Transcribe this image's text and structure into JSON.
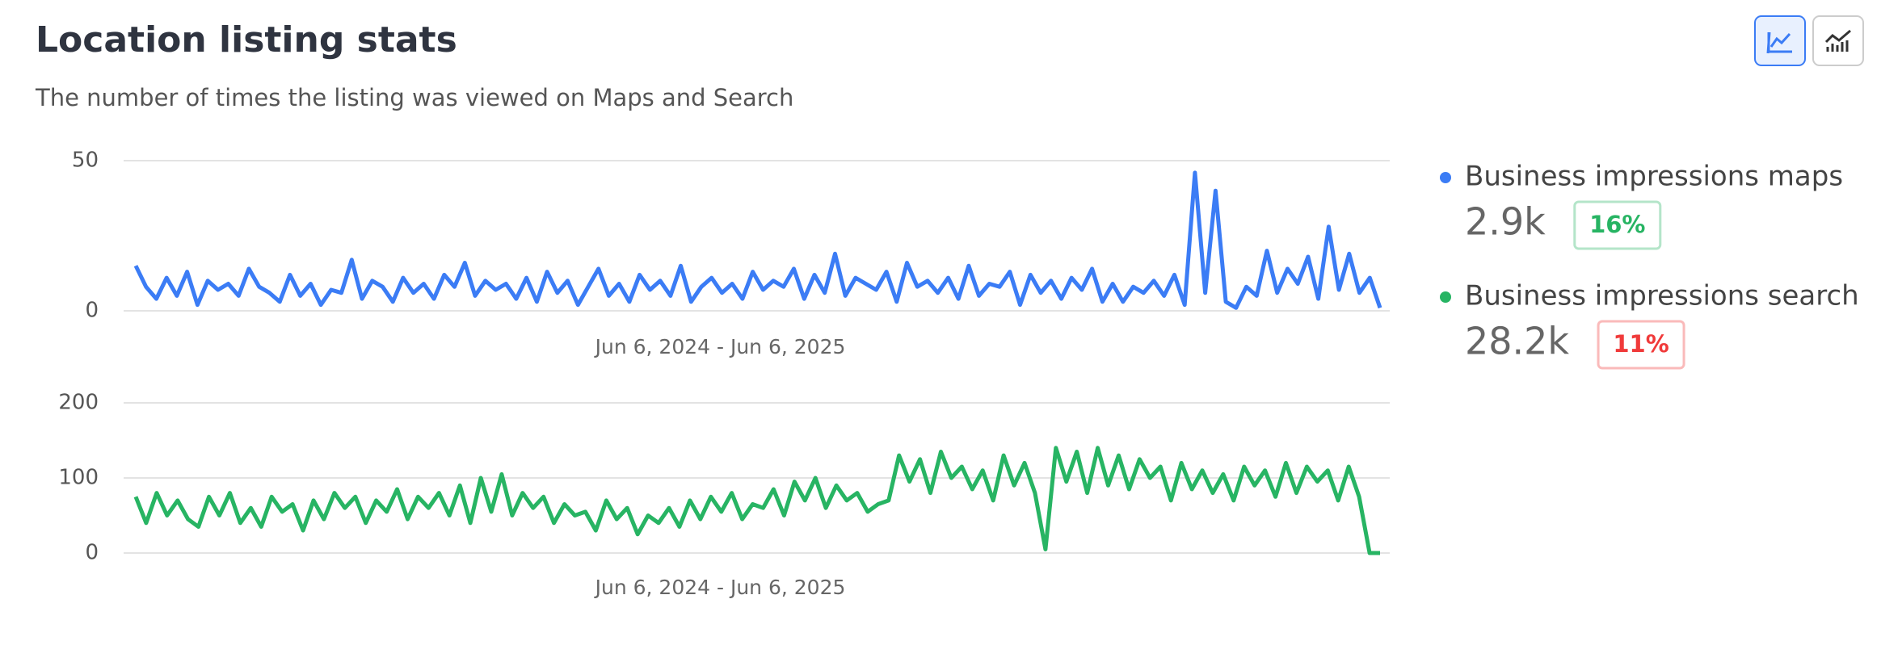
{
  "header": {
    "title": "Location listing stats",
    "subtitle": "The number of times the listing was viewed on Maps and Search"
  },
  "chart_data": [
    {
      "type": "line",
      "xlabel": "Jun 6, 2024 - Jun 6, 2025",
      "ylim": [
        0,
        50
      ],
      "yticks": [
        0,
        50
      ],
      "grid": true,
      "series": [
        {
          "name": "Business impressions maps",
          "color": "#3b7cf5",
          "values": [
            15,
            8,
            4,
            11,
            5,
            13,
            2,
            10,
            7,
            9,
            5,
            14,
            8,
            6,
            3,
            12,
            5,
            9,
            2,
            7,
            6,
            17,
            4,
            10,
            8,
            3,
            11,
            6,
            9,
            4,
            12,
            8,
            16,
            5,
            10,
            7,
            9,
            4,
            11,
            3,
            13,
            6,
            10,
            2,
            8,
            14,
            5,
            9,
            3,
            12,
            7,
            10,
            5,
            15,
            3,
            8,
            11,
            6,
            9,
            4,
            13,
            7,
            10,
            8,
            14,
            4,
            12,
            6,
            19,
            5,
            11,
            9,
            7,
            13,
            3,
            16,
            8,
            10,
            6,
            11,
            4,
            15,
            5,
            9,
            8,
            13,
            2,
            12,
            6,
            10,
            4,
            11,
            7,
            14,
            3,
            9,
            3,
            8,
            6,
            10,
            5,
            12,
            2,
            46,
            6,
            40,
            3,
            1,
            8,
            5,
            20,
            6,
            14,
            9,
            18,
            4,
            28,
            7,
            19,
            6,
            11,
            1
          ]
        }
      ]
    },
    {
      "type": "line",
      "xlabel": "Jun 6, 2024 - Jun 6, 2025",
      "ylim": [
        0,
        200
      ],
      "yticks": [
        0,
        100,
        200
      ],
      "grid": true,
      "series": [
        {
          "name": "Business impressions search",
          "color": "#27b463",
          "values": [
            75,
            40,
            80,
            50,
            70,
            45,
            35,
            75,
            50,
            80,
            40,
            60,
            35,
            75,
            55,
            65,
            30,
            70,
            45,
            80,
            60,
            75,
            40,
            70,
            55,
            85,
            45,
            75,
            60,
            80,
            50,
            90,
            40,
            100,
            55,
            105,
            50,
            80,
            60,
            75,
            40,
            65,
            50,
            55,
            30,
            70,
            45,
            60,
            25,
            50,
            40,
            60,
            35,
            70,
            45,
            75,
            55,
            80,
            45,
            65,
            60,
            85,
            50,
            95,
            70,
            100,
            60,
            90,
            70,
            80,
            55,
            65,
            70,
            130,
            95,
            125,
            80,
            135,
            100,
            115,
            85,
            110,
            70,
            130,
            90,
            120,
            80,
            5,
            140,
            95,
            135,
            80,
            140,
            90,
            130,
            85,
            125,
            100,
            115,
            70,
            120,
            85,
            110,
            80,
            105,
            70,
            115,
            90,
            110,
            75,
            120,
            80,
            115,
            95,
            110,
            70,
            115,
            75,
            0,
            0
          ]
        }
      ]
    }
  ],
  "summary": [
    {
      "total": "2.9k",
      "change": "16%",
      "color": "#27b463"
    },
    {
      "total": "28.2k",
      "change": "11%",
      "color": "#f03a3a"
    }
  ]
}
